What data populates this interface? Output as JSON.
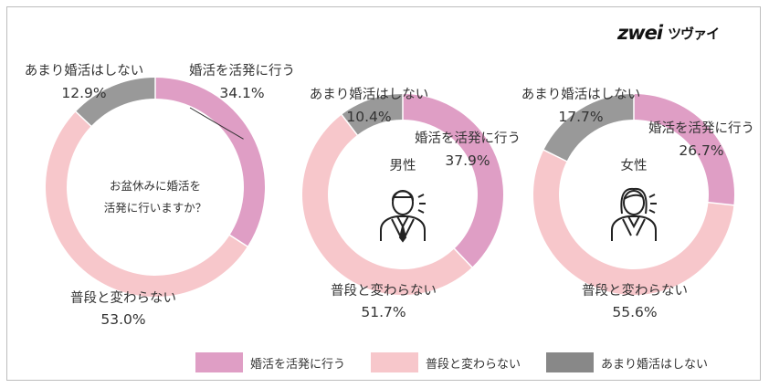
{
  "brand": {
    "logo_mark": "zwei",
    "logo_text": "ツヴァイ"
  },
  "colors": {
    "active": "#df9ec5",
    "usual": "#f7c7cb",
    "none": "#999999",
    "legend_none": "#888888",
    "icon": "#222222"
  },
  "chart_data": [
    {
      "type": "pie",
      "variant": "donut",
      "center_text": [
        "お盆休みに婚活を",
        "活発に行いますか？"
      ],
      "center_icon": "",
      "slices": [
        {
          "label": "婚活を活発に行う",
          "value": 34.1,
          "value_label": "34.1%"
        },
        {
          "label": "普段と変わらない",
          "value": 53.0,
          "value_label": "53.0%"
        },
        {
          "label": "あまり婚活はしない",
          "value": 12.9,
          "value_label": "12.9%"
        }
      ]
    },
    {
      "type": "pie",
      "variant": "donut",
      "center_text": [
        "男性"
      ],
      "center_icon": "man-icon",
      "slices": [
        {
          "label": "婚活を活発に行う",
          "value": 37.9,
          "value_label": "37.9%"
        },
        {
          "label": "普段と変わらない",
          "value": 51.7,
          "value_label": "51.7%"
        },
        {
          "label": "あまり婚活はしない",
          "value": 10.4,
          "value_label": "10.4%"
        }
      ]
    },
    {
      "type": "pie",
      "variant": "donut",
      "center_text": [
        "女性"
      ],
      "center_icon": "woman-icon",
      "slices": [
        {
          "label": "婚活を活発に行う",
          "value": 26.7,
          "value_label": "26.7%"
        },
        {
          "label": "普段と変わらない",
          "value": 55.6,
          "value_label": "55.6%"
        },
        {
          "label": "あまり婚活はしない",
          "value": 17.7,
          "value_label": "17.7%"
        }
      ]
    }
  ],
  "legend": [
    {
      "label": "婚活を活発に行う",
      "color": "#df9ec5"
    },
    {
      "label": "普段と変わらない",
      "color": "#f7c7cb"
    },
    {
      "label": "あまり婚活はしない",
      "color": "#888888"
    }
  ]
}
